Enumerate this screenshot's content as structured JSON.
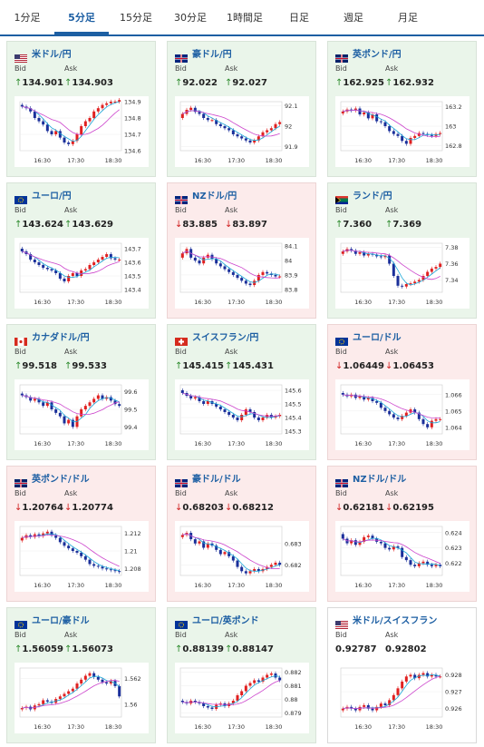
{
  "tabs": [
    "1分足",
    "5分足",
    "15分足",
    "30分足",
    "1時間足",
    "日足",
    "週足",
    "月足"
  ],
  "active_tab": 1,
  "labels": {
    "bid": "Bid",
    "ask": "Ask"
  },
  "colors": {
    "up_bg": "#eaf5ea",
    "down_bg": "#fcebeb",
    "candle_up": "#e02020",
    "candle_down": "#1a2f9a",
    "ma_short": "#1aa7d8",
    "ma_long": "#cc44cc",
    "title": "#1d5fa3"
  },
  "pairs": [
    {
      "name": "米ドル/円",
      "flag": "us-jp-flag-icon",
      "trend": "up",
      "bid": "134.901",
      "ask": "134.903",
      "chart_data": {
        "type": "candlestick",
        "x_ticks": [
          "16:30",
          "17:30",
          "18:30"
        ],
        "y_ticks": [
          "134.9",
          "134.8",
          "134.7",
          "134.6"
        ],
        "ylim": [
          134.6,
          134.9
        ],
        "close": [
          134.87,
          134.86,
          134.84,
          134.8,
          134.78,
          134.76,
          134.72,
          134.7,
          134.72,
          134.68,
          134.65,
          134.64,
          134.66,
          134.7,
          134.75,
          134.78,
          134.8,
          134.84,
          134.86,
          134.88,
          134.89,
          134.9,
          134.9,
          134.91
        ]
      }
    },
    {
      "name": "豪ドル/円",
      "flag": "au-jp-flag-icon",
      "trend": "up",
      "bid": "92.022",
      "ask": "92.027",
      "chart_data": {
        "type": "candlestick",
        "x_ticks": [
          "16:30",
          "17:30",
          "18:30"
        ],
        "y_ticks": [
          "92.1",
          "92",
          "91.9"
        ],
        "ylim": [
          91.88,
          92.12
        ],
        "close": [
          92.06,
          92.08,
          92.09,
          92.07,
          92.06,
          92.04,
          92.03,
          92.03,
          92.01,
          92.0,
          91.99,
          91.98,
          91.96,
          91.95,
          91.94,
          91.93,
          91.92,
          91.93,
          91.95,
          91.97,
          91.98,
          91.99,
          92.01,
          92.02
        ]
      }
    },
    {
      "name": "英ポンド/円",
      "flag": "gb-jp-flag-icon",
      "trend": "up",
      "bid": "162.925",
      "ask": "162.932",
      "chart_data": {
        "type": "candlestick",
        "x_ticks": [
          "16:30",
          "17:30",
          "18:30"
        ],
        "y_ticks": [
          "163.2",
          "163",
          "162.8"
        ],
        "ylim": [
          162.75,
          163.25
        ],
        "close": [
          163.15,
          163.17,
          163.16,
          163.18,
          163.12,
          163.14,
          163.08,
          163.12,
          163.05,
          163.04,
          163.0,
          162.95,
          162.92,
          162.9,
          162.85,
          162.82,
          162.88,
          162.9,
          162.93,
          162.92,
          162.91,
          162.9,
          162.92,
          162.93
        ]
      }
    },
    {
      "name": "ユーロ/円",
      "flag": "eu-jp-flag-icon",
      "trend": "up",
      "bid": "143.624",
      "ask": "143.629",
      "chart_data": {
        "type": "candlestick",
        "x_ticks": [
          "16:30",
          "17:30",
          "18:30"
        ],
        "y_ticks": [
          "143.7",
          "143.6",
          "143.5",
          "143.4"
        ],
        "ylim": [
          143.38,
          143.74
        ],
        "close": [
          143.68,
          143.66,
          143.62,
          143.6,
          143.58,
          143.56,
          143.55,
          143.54,
          143.52,
          143.48,
          143.46,
          143.5,
          143.52,
          143.5,
          143.54,
          143.55,
          143.58,
          143.6,
          143.62,
          143.64,
          143.66,
          143.63,
          143.62,
          143.62
        ]
      }
    },
    {
      "name": "NZドル/円",
      "flag": "nz-jp-flag-icon",
      "trend": "down",
      "bid": "83.885",
      "ask": "83.897",
      "chart_data": {
        "type": "candlestick",
        "x_ticks": [
          "16:30",
          "17:30",
          "18:30"
        ],
        "y_ticks": [
          "84.1",
          "84",
          "83.9",
          "83.8"
        ],
        "ylim": [
          83.78,
          84.12
        ],
        "close": [
          84.05,
          84.08,
          84.02,
          84.0,
          83.98,
          84.02,
          84.04,
          84.01,
          83.98,
          83.96,
          83.94,
          83.92,
          83.9,
          83.88,
          83.86,
          83.84,
          83.83,
          83.86,
          83.9,
          83.92,
          83.91,
          83.9,
          83.89,
          83.89
        ]
      }
    },
    {
      "name": "ランド/円",
      "flag": "za-jp-flag-icon",
      "trend": "up",
      "bid": "7.360",
      "ask": "7.369",
      "chart_data": {
        "type": "candlestick",
        "x_ticks": [
          "16:30",
          "17:30",
          "18:30"
        ],
        "y_ticks": [
          "7.38",
          "7.36",
          "7.34"
        ],
        "ylim": [
          7.325,
          7.385
        ],
        "close": [
          7.375,
          7.378,
          7.376,
          7.372,
          7.374,
          7.37,
          7.372,
          7.371,
          7.369,
          7.368,
          7.37,
          7.36,
          7.345,
          7.333,
          7.332,
          7.335,
          7.336,
          7.338,
          7.34,
          7.345,
          7.35,
          7.354,
          7.356,
          7.36
        ]
      }
    },
    {
      "name": "カナダドル/円",
      "flag": "ca-jp-flag-icon",
      "trend": "up",
      "bid": "99.518",
      "ask": "99.533",
      "chart_data": {
        "type": "candlestick",
        "x_ticks": [
          "16:30",
          "17:30",
          "18:30"
        ],
        "y_ticks": [
          "99.6",
          "99.5",
          "99.4"
        ],
        "ylim": [
          99.36,
          99.64
        ],
        "close": [
          99.58,
          99.57,
          99.55,
          99.56,
          99.54,
          99.52,
          99.54,
          99.5,
          99.48,
          99.46,
          99.42,
          99.44,
          99.4,
          99.46,
          99.5,
          99.52,
          99.54,
          99.56,
          99.58,
          99.56,
          99.57,
          99.55,
          99.53,
          99.52
        ]
      }
    },
    {
      "name": "スイスフラン/円",
      "flag": "ch-jp-flag-icon",
      "trend": "up",
      "bid": "145.415",
      "ask": "145.431",
      "chart_data": {
        "type": "candlestick",
        "x_ticks": [
          "16:30",
          "17:30",
          "18:30"
        ],
        "y_ticks": [
          "145.6",
          "145.5",
          "145.4",
          "145.3"
        ],
        "ylim": [
          145.28,
          145.64
        ],
        "close": [
          145.58,
          145.56,
          145.54,
          145.55,
          145.52,
          145.5,
          145.52,
          145.5,
          145.48,
          145.46,
          145.44,
          145.42,
          145.4,
          145.38,
          145.42,
          145.46,
          145.44,
          145.4,
          145.38,
          145.4,
          145.42,
          145.4,
          145.41,
          145.42
        ]
      }
    },
    {
      "name": "ユーロ/ドル",
      "flag": "eu-us-flag-icon",
      "trend": "down",
      "bid": "1.06449",
      "ask": "1.06453",
      "chart_data": {
        "type": "candlestick",
        "x_ticks": [
          "16:30",
          "17:30",
          "18:30"
        ],
        "y_ticks": [
          "1.066",
          "1.065",
          "1.064"
        ],
        "ylim": [
          1.0636,
          1.0666
        ],
        "close": [
          1.066,
          1.0659,
          1.066,
          1.0658,
          1.0659,
          1.0657,
          1.0658,
          1.0656,
          1.0655,
          1.0652,
          1.065,
          1.0648,
          1.0646,
          1.0645,
          1.0647,
          1.0649,
          1.0651,
          1.0649,
          1.0645,
          1.0642,
          1.064,
          1.0644,
          1.0645,
          1.0645
        ]
      }
    },
    {
      "name": "英ポンド/ドル",
      "flag": "gb-us-flag-icon",
      "trend": "down",
      "bid": "1.20764",
      "ask": "1.20774",
      "chart_data": {
        "type": "candlestick",
        "x_ticks": [
          "16:30",
          "17:30",
          "18:30"
        ],
        "y_ticks": [
          "1.212",
          "1.21",
          "1.208"
        ],
        "ylim": [
          1.2072,
          1.2128
        ],
        "close": [
          1.2115,
          1.2118,
          1.2116,
          1.2119,
          1.2117,
          1.212,
          1.2122,
          1.2118,
          1.2115,
          1.211,
          1.2106,
          1.2103,
          1.21,
          1.2098,
          1.2094,
          1.209,
          1.2085,
          1.2083,
          1.2082,
          1.208,
          1.2079,
          1.2078,
          1.2077,
          1.2076
        ]
      }
    },
    {
      "name": "豪ドル/ドル",
      "flag": "au-us-flag-icon",
      "trend": "down",
      "bid": "0.68203",
      "ask": "0.68212",
      "chart_data": {
        "type": "candlestick",
        "x_ticks": [
          "16:30",
          "17:30",
          "18:30"
        ],
        "y_ticks": [
          "0.683",
          "0.682"
        ],
        "ylim": [
          0.6815,
          0.6838
        ],
        "close": [
          0.6834,
          0.6835,
          0.6832,
          0.683,
          0.6831,
          0.6828,
          0.683,
          0.6829,
          0.6827,
          0.6825,
          0.6826,
          0.6824,
          0.6822,
          0.6819,
          0.6817,
          0.6816,
          0.6817,
          0.6818,
          0.6817,
          0.6818,
          0.6819,
          0.682,
          0.6821,
          0.682
        ]
      }
    },
    {
      "name": "NZドル/ドル",
      "flag": "nz-us-flag-icon",
      "trend": "down",
      "bid": "0.62181",
      "ask": "0.62195",
      "chart_data": {
        "type": "candlestick",
        "x_ticks": [
          "16:30",
          "17:30",
          "18:30"
        ],
        "y_ticks": [
          "0.624",
          "0.623",
          "0.622"
        ],
        "ylim": [
          0.6212,
          0.6244
        ],
        "close": [
          0.6236,
          0.6233,
          0.6235,
          0.6232,
          0.6234,
          0.6237,
          0.6238,
          0.6236,
          0.6234,
          0.6233,
          0.623,
          0.6229,
          0.6231,
          0.623,
          0.6224,
          0.6222,
          0.6219,
          0.6218,
          0.622,
          0.6221,
          0.6219,
          0.6218,
          0.6219,
          0.6218
        ]
      }
    },
    {
      "name": "ユーロ/豪ドル",
      "flag": "eu-au-flag-icon",
      "trend": "up",
      "bid": "1.56059",
      "ask": "1.56073",
      "chart_data": {
        "type": "candlestick",
        "x_ticks": [
          "16:30",
          "17:30",
          "18:30"
        ],
        "y_ticks": [
          "1.562",
          "1.56"
        ],
        "ylim": [
          1.559,
          1.5628
        ],
        "close": [
          1.5597,
          1.5598,
          1.5596,
          1.5599,
          1.56,
          1.5603,
          1.5602,
          1.5601,
          1.5604,
          1.5606,
          1.5608,
          1.561,
          1.5612,
          1.5616,
          1.5619,
          1.5622,
          1.5624,
          1.5621,
          1.5619,
          1.5617,
          1.5616,
          1.5618,
          1.5614,
          1.5606
        ]
      }
    },
    {
      "name": "ユーロ/英ポンド",
      "flag": "eu-gb-flag-icon",
      "trend": "up",
      "bid": "0.88139",
      "ask": "0.88147",
      "chart_data": {
        "type": "candlestick",
        "x_ticks": [
          "16:30",
          "17:30",
          "18:30"
        ],
        "y_ticks": [
          "0.882",
          "0.881",
          "0.88",
          "0.879"
        ],
        "ylim": [
          0.8787,
          0.8823
        ],
        "close": [
          0.8798,
          0.8797,
          0.8799,
          0.8798,
          0.8797,
          0.8795,
          0.8794,
          0.8793,
          0.8796,
          0.8797,
          0.8795,
          0.8797,
          0.8799,
          0.8803,
          0.8806,
          0.881,
          0.8812,
          0.8814,
          0.8813,
          0.8816,
          0.8818,
          0.8819,
          0.8816,
          0.8814
        ]
      }
    },
    {
      "name": "米ドル/スイスフラン",
      "flag": "us-ch-flag-icon",
      "trend": "flat",
      "bid": "0.92787",
      "ask": "0.92802",
      "chart_data": {
        "type": "candlestick",
        "x_ticks": [
          "16:30",
          "17:30",
          "18:30"
        ],
        "y_ticks": [
          "0.928",
          "0.927",
          "0.926"
        ],
        "ylim": [
          0.9255,
          0.9284
        ],
        "close": [
          0.926,
          0.9261,
          0.926,
          0.9259,
          0.9261,
          0.9262,
          0.926,
          0.9259,
          0.9261,
          0.9263,
          0.9262,
          0.9265,
          0.9268,
          0.9272,
          0.9276,
          0.9279,
          0.928,
          0.9278,
          0.928,
          0.9281,
          0.9279,
          0.928,
          0.9279,
          0.9279
        ]
      }
    }
  ]
}
